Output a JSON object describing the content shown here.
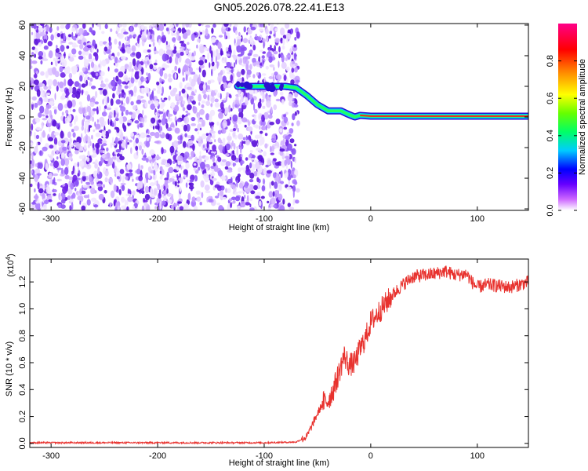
{
  "title": "GN05.2026.078.22.41.E13",
  "chart_data": [
    {
      "type": "heatmap",
      "name": "spectrogram",
      "xlabel": "Height of straight line (km)",
      "ylabel": "Frequency (Hz)",
      "xlim": [
        -320,
        148
      ],
      "ylim": [
        -61,
        61
      ],
      "xticks": [
        -300,
        -200,
        -100,
        0,
        100
      ],
      "yticks": [
        60,
        40,
        20,
        0,
        -20,
        -40,
        -60
      ],
      "xtick_labels": [
        "-300",
        "-200",
        "-100",
        "0",
        "100"
      ],
      "ytick_labels": [
        "60",
        "40",
        "20",
        "0",
        "-20",
        "-40",
        "-60"
      ],
      "noise_region_x": [
        -320,
        -68
      ],
      "signal_track": {
        "x": [
          -125,
          -100,
          -80,
          -70,
          -60,
          -50,
          -40,
          -33,
          -28,
          -22,
          -15,
          -10,
          0,
          50,
          100,
          148
        ],
        "y": [
          20,
          20,
          20,
          19,
          14,
          8,
          4,
          4,
          4,
          2,
          0,
          1,
          0.5,
          0.5,
          0.5,
          0.5
        ]
      },
      "colorbar": {
        "label": "Normalized spectral amplitude",
        "range": [
          0,
          1
        ],
        "ticks": [
          0.0,
          0.2,
          0.4,
          0.6,
          0.8
        ],
        "tick_labels": [
          "0.0",
          "0.2",
          "0.4",
          "0.6",
          "0.8"
        ],
        "colors": [
          "#ffffff",
          "#cc66ff",
          "#6600ff",
          "#0000ff",
          "#00ccff",
          "#00ff66",
          "#66ff00",
          "#ffff00",
          "#ff8800",
          "#ff0000",
          "#ff0088"
        ]
      }
    },
    {
      "type": "line",
      "name": "snr",
      "xlabel": "Height of straight line (km)",
      "ylabel": "SNR (10 * v/v)",
      "yscale_label_prefix": "(x10",
      "yscale_label_exp": "4",
      "yscale_label_suffix": ")",
      "xlim": [
        -320,
        148
      ],
      "ylim": [
        -0.03,
        1.37
      ],
      "xticks": [
        -300,
        -200,
        -100,
        0,
        100
      ],
      "yticks": [
        0.0,
        0.2,
        0.4,
        0.6,
        0.8,
        1.0,
        1.2
      ],
      "xtick_labels": [
        "-300",
        "-200",
        "-100",
        "0",
        "100"
      ],
      "ytick_labels": [
        "0.0",
        "0.2",
        "0.4",
        "0.6",
        "0.8",
        "1.0",
        "1.2"
      ],
      "color": "#e8322e",
      "series": [
        {
          "name": "SNR",
          "x": [
            -320,
            -200,
            -100,
            -70,
            -60,
            -50,
            -45,
            -40,
            -35,
            -30,
            -25,
            -20,
            -15,
            -10,
            -5,
            0,
            10,
            20,
            30,
            40,
            50,
            60,
            70,
            80,
            90,
            95,
            100,
            110,
            120,
            130,
            140,
            148
          ],
          "y": [
            0.005,
            0.005,
            0.005,
            0.01,
            0.05,
            0.22,
            0.3,
            0.32,
            0.4,
            0.52,
            0.65,
            0.58,
            0.6,
            0.7,
            0.78,
            0.9,
            1.0,
            1.1,
            1.18,
            1.24,
            1.25,
            1.26,
            1.28,
            1.25,
            1.26,
            1.2,
            1.16,
            1.18,
            1.17,
            1.16,
            1.18,
            1.2
          ]
        }
      ]
    }
  ]
}
